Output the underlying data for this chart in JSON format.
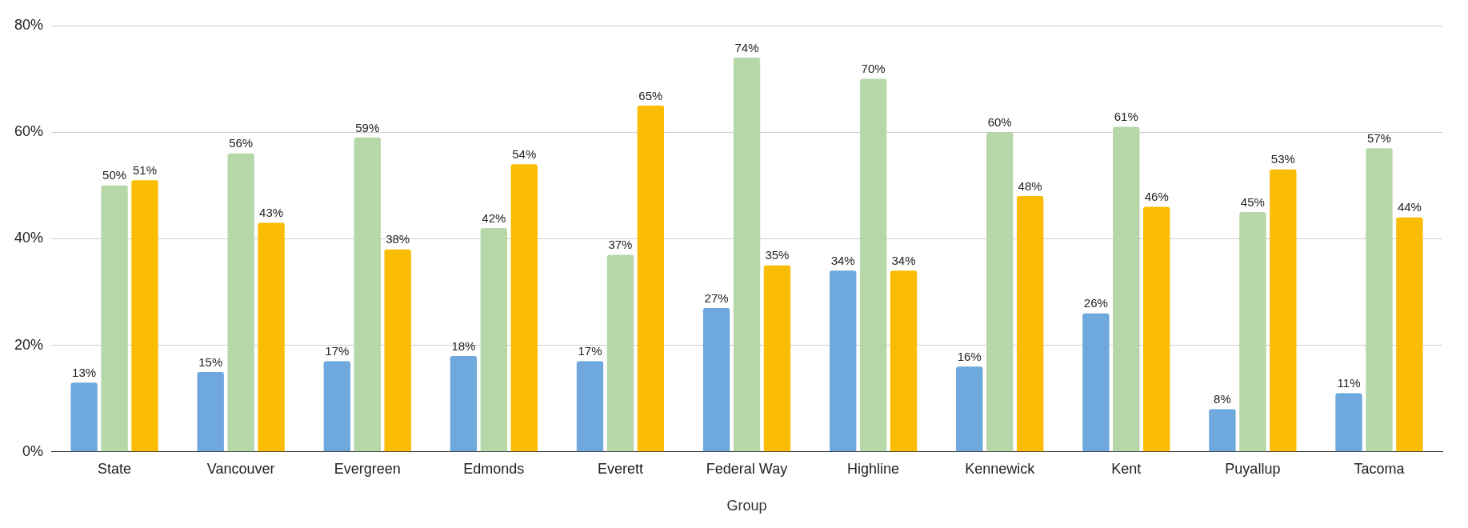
{
  "chart_data": {
    "type": "bar",
    "xlabel": "Group",
    "categories": [
      "State",
      "Vancouver",
      "Evergreen",
      "Edmonds",
      "Everett",
      "Federal Way",
      "Highline",
      "Kennewick",
      "Kent",
      "Puyallup",
      "Tacoma"
    ],
    "series": [
      {
        "color": "#6fa8dc",
        "values": [
          13,
          15,
          17,
          18,
          17,
          27,
          34,
          16,
          26,
          8,
          11
        ],
        "value_labels": [
          "13%",
          "15%",
          "17%",
          "18%",
          "17%",
          "27%",
          "34%",
          "16%",
          "26%",
          "8%",
          "11%"
        ]
      },
      {
        "color": "#b6d7a8",
        "values": [
          50,
          56,
          59,
          42,
          37,
          74,
          70,
          60,
          61,
          45,
          57
        ],
        "value_labels": [
          "50%",
          "56%",
          "59%",
          "42%",
          "37%",
          "74%",
          "70%",
          "60%",
          "61%",
          "45%",
          "57%"
        ]
      },
      {
        "color": "#fbbc04",
        "values": [
          51,
          43,
          38,
          54,
          65,
          35,
          34,
          48,
          46,
          53,
          44
        ],
        "value_labels": [
          "51%",
          "43%",
          "38%",
          "54%",
          "65%",
          "35%",
          "34%",
          "48%",
          "46%",
          "53%",
          "44%"
        ]
      }
    ],
    "ylim": [
      0,
      80
    ],
    "yticks": [
      {
        "value": 0,
        "label": "0%"
      },
      {
        "value": 20,
        "label": "20%"
      },
      {
        "value": 40,
        "label": "40%"
      },
      {
        "value": 60,
        "label": "60%"
      },
      {
        "value": 80,
        "label": "80%"
      }
    ],
    "grid": "y",
    "legend": false
  }
}
